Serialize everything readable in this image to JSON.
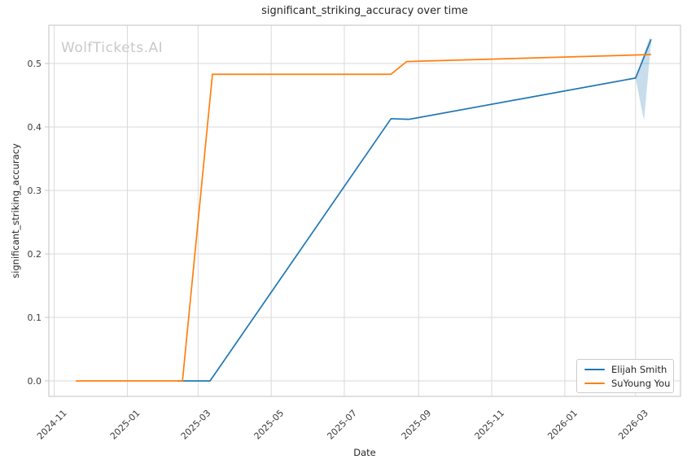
{
  "watermark": "WolfTickets.AI",
  "chart_data": {
    "type": "line",
    "title": "significant_striking_accuracy over time",
    "xlabel": "Date",
    "ylabel": "significant_striking_accuracy",
    "grid": true,
    "legend_position": "lower right",
    "x_domain": [
      "2024-10-27T12:00:00Z",
      "2026-04-07T12:00:00Z"
    ],
    "y_domain": [
      -0.0244,
      0.5602
    ],
    "x_ticks": [
      {
        "label": "2024-11",
        "date": "2024-11-01"
      },
      {
        "label": "2025-01",
        "date": "2025-01-01"
      },
      {
        "label": "2025-03",
        "date": "2025-03-01"
      },
      {
        "label": "2025-05",
        "date": "2025-05-01"
      },
      {
        "label": "2025-07",
        "date": "2025-07-01"
      },
      {
        "label": "2025-09",
        "date": "2025-09-01"
      },
      {
        "label": "2025-11",
        "date": "2025-11-01"
      },
      {
        "label": "2026-01",
        "date": "2026-01-01"
      },
      {
        "label": "2026-03",
        "date": "2026-03-01"
      }
    ],
    "y_ticks": [
      {
        "label": "0.0",
        "value": 0.0
      },
      {
        "label": "0.1",
        "value": 0.1
      },
      {
        "label": "0.2",
        "value": 0.2
      },
      {
        "label": "0.3",
        "value": 0.3
      },
      {
        "label": "0.4",
        "value": 0.4
      },
      {
        "label": "0.5",
        "value": 0.5
      }
    ],
    "series": [
      {
        "name": "Elijah Smith",
        "color": "#1f77b4",
        "points": [
          [
            "2025-02-12",
            0.0
          ],
          [
            "2025-03-11",
            0.0
          ],
          [
            "2025-08-09",
            0.413
          ],
          [
            "2025-08-24",
            0.412
          ],
          [
            "2026-03-01",
            0.477
          ],
          [
            "2026-03-14",
            0.538
          ]
        ]
      },
      {
        "name": "SuYoung You",
        "color": "#ff7f0e",
        "points": [
          [
            "2024-11-19",
            0.0
          ],
          [
            "2025-02-16",
            0.0
          ],
          [
            "2025-03-13",
            0.483
          ],
          [
            "2025-08-09",
            0.483
          ],
          [
            "2025-08-22",
            0.503
          ],
          [
            "2026-03-14",
            0.514
          ]
        ]
      }
    ],
    "confidence_band": {
      "series": "Elijah Smith",
      "color": "rgba(31,119,180,0.25)",
      "polygon": [
        [
          "2026-03-01",
          0.477
        ],
        [
          "2026-03-13",
          0.542
        ],
        [
          "2026-03-14",
          0.533
        ],
        [
          "2026-03-08",
          0.41
        ]
      ]
    }
  },
  "legend": {
    "items": [
      {
        "label": "Elijah Smith",
        "color": "#1f77b4"
      },
      {
        "label": "SuYoung You",
        "color": "#ff7f0e"
      }
    ]
  }
}
